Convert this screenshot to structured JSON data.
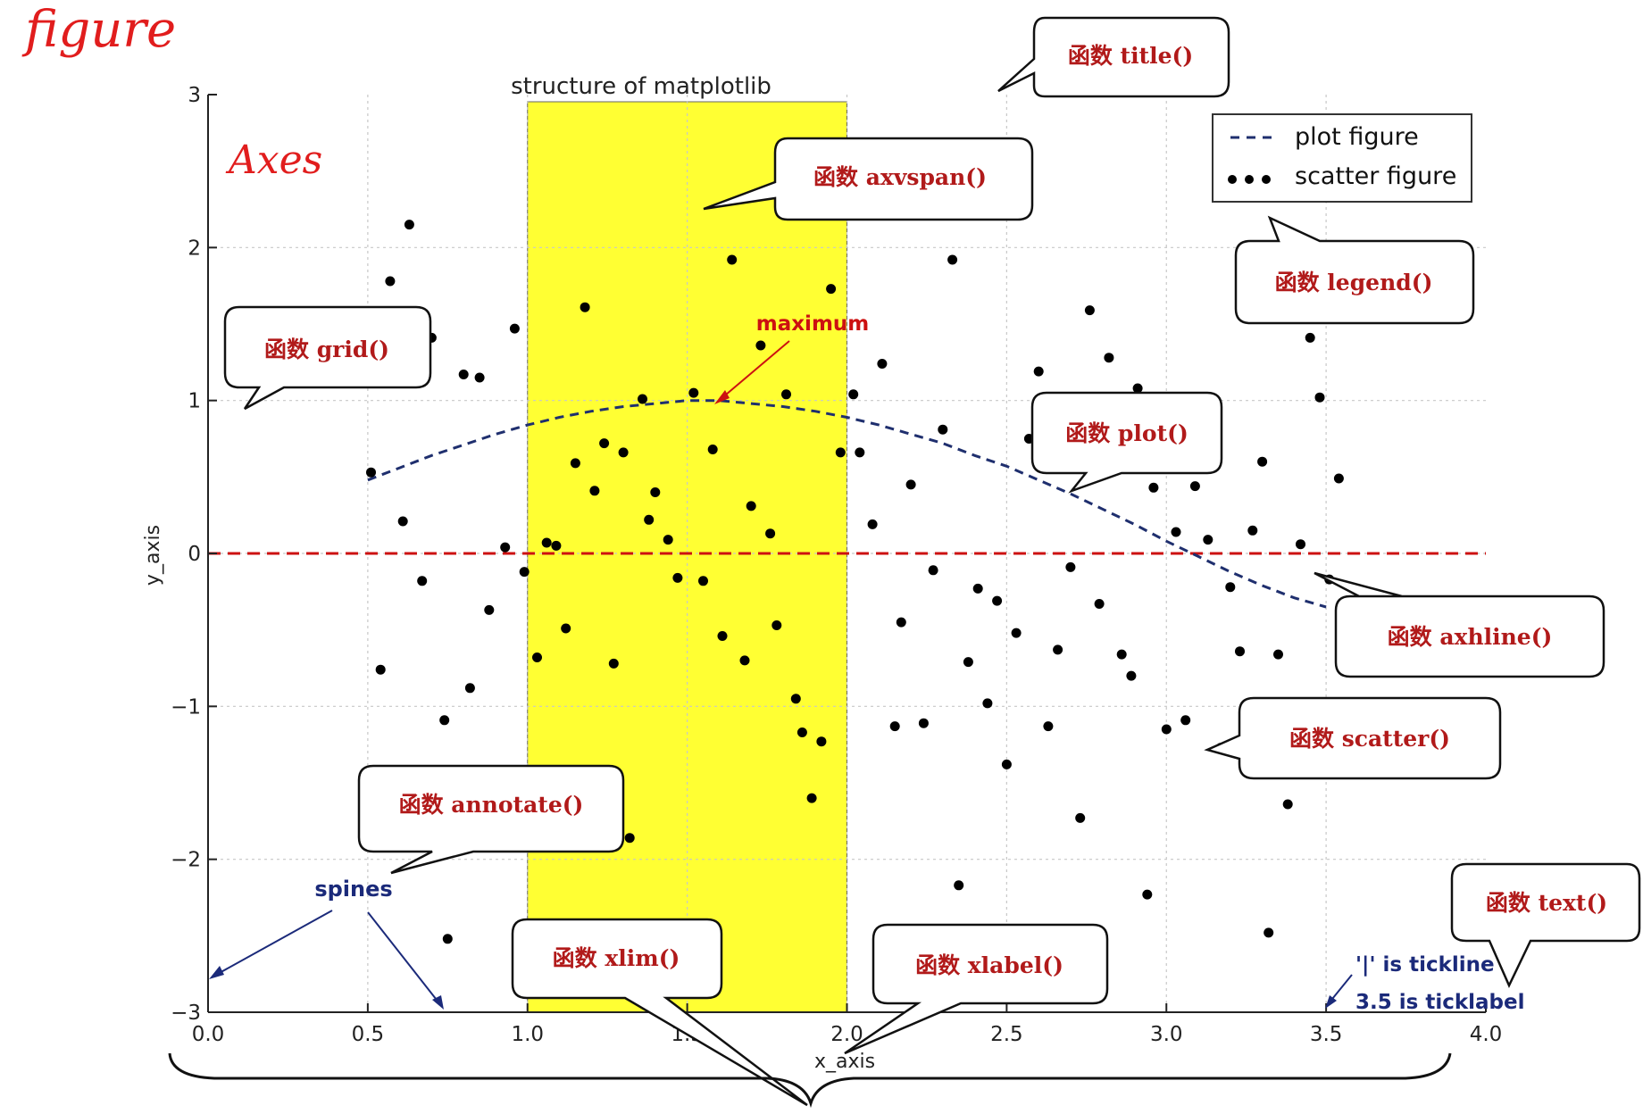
{
  "figure_label": "figure",
  "axes_label": "Axes",
  "chart_data": {
    "type": "scatter",
    "title": "structure of matplotlib",
    "xlabel": "x_axis",
    "ylabel": "y_axis",
    "xlim": [
      0.0,
      4.0
    ],
    "ylim": [
      -3,
      3
    ],
    "x_ticks": [
      0.0,
      0.5,
      1.0,
      1.5,
      2.0,
      2.5,
      3.0,
      3.5,
      4.0
    ],
    "x_tick_labels": [
      "0.0",
      "0.5",
      "1.0",
      "1.5",
      "2.0",
      "2.5",
      "3.0",
      "3.5",
      "4.0"
    ],
    "y_ticks": [
      -3,
      -2,
      -1,
      0,
      1,
      2,
      3
    ],
    "y_tick_labels": [
      "−3",
      "−2",
      "−1",
      "0",
      "1",
      "2",
      "3"
    ],
    "grid": true,
    "legend_position": "top-right",
    "axvspan": {
      "xmin": 1.0,
      "xmax": 2.0,
      "color": "#ffff33"
    },
    "axhline": {
      "y": 0,
      "color": "#cc1111",
      "style": "dashed"
    },
    "series": [
      {
        "name": "plot figure",
        "kind": "line",
        "style": "dashed",
        "color": "#1f2f6e",
        "x": [
          0.5,
          0.6,
          0.7,
          0.8,
          0.9,
          1.0,
          1.1,
          1.2,
          1.3,
          1.4,
          1.5,
          1.6,
          1.7,
          1.8,
          1.9,
          2.0,
          2.1,
          2.2,
          2.3,
          2.4,
          2.5,
          2.6,
          2.7,
          2.8,
          2.9,
          3.0,
          3.1,
          3.2,
          3.3,
          3.4,
          3.5
        ],
        "y": [
          0.48,
          0.56,
          0.64,
          0.71,
          0.78,
          0.84,
          0.89,
          0.93,
          0.96,
          0.98,
          1.0,
          1.0,
          0.98,
          0.96,
          0.93,
          0.89,
          0.84,
          0.78,
          0.72,
          0.64,
          0.57,
          0.48,
          0.39,
          0.29,
          0.19,
          0.08,
          -0.02,
          -0.12,
          -0.21,
          -0.29,
          -0.35
        ]
      },
      {
        "name": "scatter figure",
        "kind": "scatter",
        "color": "#000000",
        "points": [
          [
            0.51,
            0.53
          ],
          [
            0.54,
            -0.76
          ],
          [
            0.57,
            1.78
          ],
          [
            0.61,
            0.21
          ],
          [
            0.63,
            2.15
          ],
          [
            0.67,
            -0.18
          ],
          [
            0.7,
            1.41
          ],
          [
            0.74,
            -1.09
          ],
          [
            0.75,
            -2.52
          ],
          [
            0.8,
            1.17
          ],
          [
            0.82,
            -0.88
          ],
          [
            0.85,
            1.15
          ],
          [
            0.88,
            -0.37
          ],
          [
            0.93,
            0.04
          ],
          [
            0.96,
            1.47
          ],
          [
            0.99,
            -0.12
          ],
          [
            1.03,
            -0.68
          ],
          [
            1.06,
            0.07
          ],
          [
            1.09,
            0.05
          ],
          [
            1.12,
            -0.49
          ],
          [
            1.15,
            0.59
          ],
          [
            1.18,
            1.61
          ],
          [
            1.21,
            0.41
          ],
          [
            1.24,
            0.72
          ],
          [
            1.27,
            -0.72
          ],
          [
            1.3,
            0.66
          ],
          [
            1.32,
            -1.86
          ],
          [
            1.36,
            1.01
          ],
          [
            1.38,
            0.22
          ],
          [
            1.4,
            0.4
          ],
          [
            1.44,
            0.09
          ],
          [
            1.47,
            -0.16
          ],
          [
            1.52,
            1.05
          ],
          [
            1.55,
            -0.18
          ],
          [
            1.58,
            0.68
          ],
          [
            1.61,
            -0.54
          ],
          [
            1.64,
            1.92
          ],
          [
            1.68,
            -0.7
          ],
          [
            1.7,
            0.31
          ],
          [
            1.73,
            1.36
          ],
          [
            1.76,
            0.13
          ],
          [
            1.78,
            -0.47
          ],
          [
            1.81,
            1.04
          ],
          [
            1.84,
            -0.95
          ],
          [
            1.86,
            -1.17
          ],
          [
            1.89,
            -1.6
          ],
          [
            1.92,
            -1.23
          ],
          [
            1.95,
            1.73
          ],
          [
            1.98,
            0.66
          ],
          [
            2.02,
            1.04
          ],
          [
            2.04,
            0.66
          ],
          [
            2.08,
            0.19
          ],
          [
            2.11,
            1.24
          ],
          [
            2.15,
            -1.13
          ],
          [
            2.17,
            -0.45
          ],
          [
            2.2,
            0.45
          ],
          [
            2.24,
            -1.11
          ],
          [
            2.27,
            -0.11
          ],
          [
            2.3,
            0.81
          ],
          [
            2.33,
            1.92
          ],
          [
            2.35,
            -2.17
          ],
          [
            2.38,
            -0.71
          ],
          [
            2.41,
            -0.23
          ],
          [
            2.44,
            -0.98
          ],
          [
            2.47,
            -0.31
          ],
          [
            2.5,
            -1.38
          ],
          [
            2.53,
            -0.52
          ],
          [
            2.57,
            0.75
          ],
          [
            2.6,
            1.19
          ],
          [
            2.63,
            -1.13
          ],
          [
            2.66,
            -0.63
          ],
          [
            2.7,
            -0.09
          ],
          [
            2.73,
            -1.73
          ],
          [
            2.76,
            1.59
          ],
          [
            2.79,
            -0.33
          ],
          [
            2.82,
            1.28
          ],
          [
            2.86,
            -0.66
          ],
          [
            2.89,
            -0.8
          ],
          [
            2.91,
            1.08
          ],
          [
            2.94,
            -2.23
          ],
          [
            2.96,
            0.43
          ],
          [
            3.0,
            -1.15
          ],
          [
            3.03,
            0.14
          ],
          [
            3.06,
            -1.09
          ],
          [
            3.09,
            0.44
          ],
          [
            3.13,
            0.09
          ],
          [
            3.17,
            -1.27
          ],
          [
            3.2,
            -0.22
          ],
          [
            3.23,
            -0.64
          ],
          [
            3.27,
            0.15
          ],
          [
            3.3,
            0.6
          ],
          [
            3.32,
            -2.48
          ],
          [
            3.35,
            -0.66
          ],
          [
            3.38,
            -1.64
          ],
          [
            3.42,
            0.06
          ],
          [
            3.45,
            1.41
          ],
          [
            3.48,
            1.02
          ],
          [
            3.51,
            -0.17
          ],
          [
            3.54,
            0.49
          ]
        ]
      }
    ],
    "annotation": {
      "text": "maximum",
      "xy": [
        1.58,
        1.0
      ],
      "xytext": [
        1.9,
        1.52
      ],
      "color": "#cc1111"
    }
  },
  "callouts": {
    "title_fn": "函数 title()",
    "axvspan_fn": "函数 axvspan()",
    "legend_fn": "函数 legend()",
    "grid_fn": "函数 grid()",
    "plot_fn": "函数 plot()",
    "axhline_fn": "函数 axhline()",
    "scatter_fn": "函数 scatter()",
    "annotate_fn": "函数 annotate()",
    "text_fn": "函数 text()",
    "xlim_fn": "函数 xlim()",
    "xlabel_fn": "函数 xlabel()"
  },
  "notes": {
    "spines": "spines",
    "tickline": "'|' is tickline",
    "ticklabel": "3.5 is ticklabel"
  },
  "colors": {
    "callout_text": "#b11a1a",
    "handwriting": "#e11d1d",
    "note_text": "#1b2a7a",
    "axes": "#222222",
    "grid": "#c8c8c8"
  }
}
